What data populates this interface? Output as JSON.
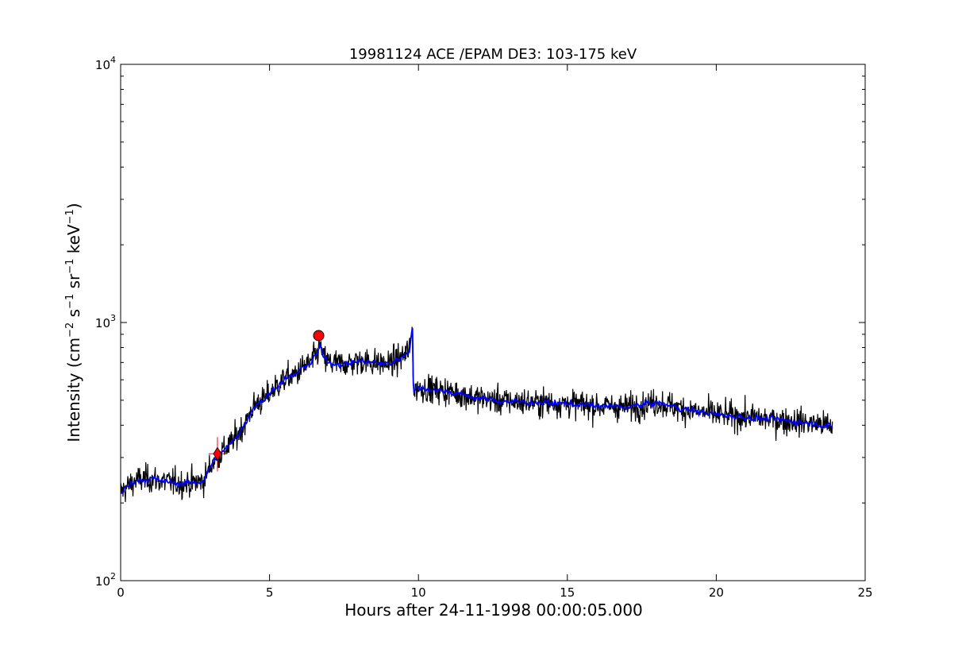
{
  "chart_data": {
    "type": "line",
    "title": "19981124 ACE /EPAM DE3: 103-175 keV",
    "xlabel": "Hours after 24-11-1998 00:00:05.000",
    "ylabel": {
      "prefix": "Intensity (cm",
      "exp1": "−2",
      "s": " s",
      "exp2": "−1",
      "sr": " sr",
      "exp3": "−1",
      "kev": " keV",
      "exp4": "−1",
      "suffix": ")"
    },
    "xlim": [
      0,
      25
    ],
    "ylim": [
      100,
      10000
    ],
    "yscale": "log",
    "grid": false,
    "x_ticks": [
      0,
      5,
      10,
      15,
      20,
      25
    ],
    "y_ticks": [
      {
        "value": 100,
        "base": "10",
        "exp": "2"
      },
      {
        "value": 1000,
        "base": "10",
        "exp": "3"
      },
      {
        "value": 10000,
        "base": "10",
        "exp": "4"
      }
    ],
    "colors": {
      "raw": "#000000",
      "smoothed": "#0000ff",
      "marker": "#ff0000",
      "cross": "#ff0000"
    },
    "series": [
      {
        "style": "raw",
        "x": [
          0.0,
          0.5,
          1.0,
          1.5,
          2.0,
          2.5,
          2.8,
          3.0,
          3.2,
          3.4,
          3.6,
          3.8,
          4.0,
          4.2,
          4.4,
          4.6,
          4.8,
          5.0,
          5.2,
          5.4,
          5.6,
          5.8,
          6.0,
          6.2,
          6.4,
          6.6,
          6.7,
          6.8,
          7.0,
          7.5,
          8.0,
          8.5,
          9.0,
          9.3,
          9.5,
          9.7,
          9.8,
          9.82,
          9.85,
          10.0,
          10.5,
          11.0,
          11.5,
          12.0,
          12.5,
          13.0,
          14.0,
          15.0,
          16.0,
          17.0,
          17.5,
          18.0,
          19.0,
          20.0,
          21.0,
          22.0,
          23.0,
          23.5,
          23.9
        ],
        "y": [
          220,
          245,
          248,
          242,
          238,
          240,
          245,
          275,
          300,
          315,
          330,
          350,
          380,
          410,
          460,
          490,
          500,
          530,
          560,
          590,
          610,
          620,
          650,
          680,
          700,
          760,
          820,
          730,
          700,
          690,
          710,
          700,
          690,
          720,
          740,
          790,
          960,
          600,
          540,
          560,
          550,
          540,
          525,
          510,
          500,
          495,
          490,
          485,
          475,
          470,
          480,
          490,
          460,
          440,
          430,
          420,
          410,
          405,
          390
        ],
        "noise": 0.16
      },
      {
        "style": "smoothed",
        "x": [
          0.0,
          0.5,
          1.0,
          1.5,
          2.0,
          2.5,
          2.8,
          3.0,
          3.2,
          3.4,
          3.6,
          3.8,
          4.0,
          4.2,
          4.4,
          4.6,
          4.8,
          5.0,
          5.2,
          5.4,
          5.6,
          5.8,
          6.0,
          6.2,
          6.4,
          6.6,
          6.7,
          6.8,
          7.0,
          7.5,
          8.0,
          8.5,
          9.0,
          9.3,
          9.5,
          9.7,
          9.8,
          9.82,
          9.85,
          10.0,
          10.5,
          11.0,
          11.5,
          12.0,
          12.5,
          13.0,
          14.0,
          15.0,
          16.0,
          17.0,
          17.5,
          18.0,
          19.0,
          20.0,
          21.0,
          22.0,
          23.0,
          23.5,
          23.9
        ],
        "y": [
          220,
          245,
          248,
          242,
          238,
          240,
          245,
          275,
          300,
          315,
          330,
          350,
          380,
          410,
          460,
          490,
          500,
          530,
          560,
          590,
          610,
          620,
          650,
          680,
          700,
          760,
          820,
          730,
          700,
          690,
          710,
          700,
          690,
          720,
          740,
          790,
          960,
          600,
          540,
          560,
          550,
          540,
          525,
          510,
          500,
          495,
          490,
          485,
          475,
          470,
          480,
          490,
          460,
          440,
          430,
          420,
          410,
          405,
          390
        ],
        "noise": 0.06
      }
    ],
    "markers": [
      {
        "type": "diamond",
        "x": 3.25,
        "y": 310
      },
      {
        "type": "circle",
        "x": 6.65,
        "y": 890
      }
    ],
    "crosshair": {
      "x": 3.25,
      "y": 310,
      "x_range": [
        2.95,
        3.55
      ],
      "y_range": [
        265,
        360
      ]
    }
  }
}
